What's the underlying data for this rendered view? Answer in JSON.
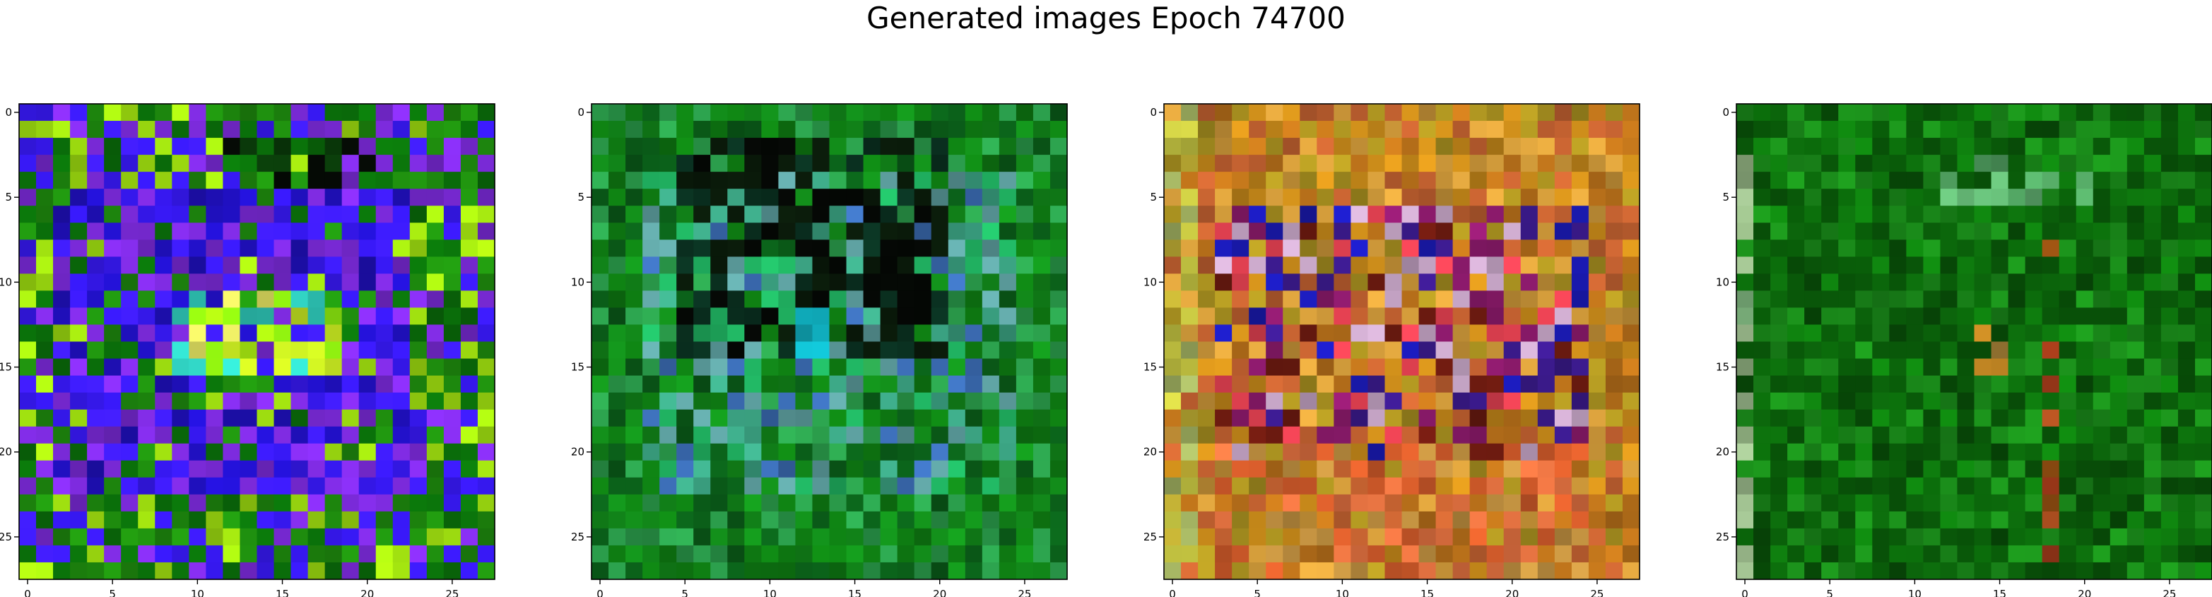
{
  "title": "Generated images Epoch 74700",
  "chart_data": [
    {
      "type": "heatmap",
      "title": "",
      "xlabel": "",
      "ylabel": "",
      "grid_size": [
        28,
        28
      ],
      "xlim": [
        -0.5,
        27.5
      ],
      "ylim": [
        27.5,
        -0.5
      ],
      "xticks": [
        0,
        5,
        10,
        15,
        20,
        25
      ],
      "yticks": [
        0,
        5,
        10,
        15,
        20,
        25
      ],
      "grid": false,
      "dominant_colors": [
        "#1e8a0e",
        "#0a6e0a",
        "#3a1aff",
        "#7a2ad8",
        "#a0e010"
      ],
      "features": [
        {
          "rows": [
            5,
            22
          ],
          "cols": [
            2,
            22
          ],
          "colors": [
            "#3a1aff",
            "#7a2ad8",
            "#2010c0"
          ],
          "kind": "ring"
        },
        {
          "rows": [
            11,
            15
          ],
          "cols": [
            9,
            18
          ],
          "colors": [
            "#c0e020",
            "#30d0c0",
            "#e0e060",
            "#90f010"
          ],
          "kind": "speckle"
        },
        {
          "rows": [
            2,
            4
          ],
          "cols": [
            10,
            20
          ],
          "colors": [
            "#050a05",
            "#0a3a0a"
          ],
          "kind": "speckle"
        }
      ]
    },
    {
      "type": "heatmap",
      "title": "",
      "xlabel": "",
      "ylabel": "",
      "grid_size": [
        28,
        28
      ],
      "xlim": [
        -0.5,
        27.5
      ],
      "ylim": [
        27.5,
        -0.5
      ],
      "xticks": [
        0,
        5,
        10,
        15,
        20,
        25
      ],
      "yticks": [
        0,
        5,
        10,
        15,
        20,
        25
      ],
      "grid": false,
      "dominant_colors": [
        "#0e7a12",
        "#128a1a",
        "#2a9a4a",
        "#0a5a18"
      ],
      "features": [
        {
          "rows": [
            4,
            22
          ],
          "cols": [
            3,
            24
          ],
          "colors": [
            "#3aa080",
            "#20b060",
            "#3a6ab0",
            "#5a9a9a"
          ],
          "kind": "speckle"
        },
        {
          "rows": [
            2,
            14
          ],
          "cols": [
            5,
            20
          ],
          "colors": [
            "#050805",
            "#0a1a0a",
            "#0a3020"
          ],
          "kind": "speckle"
        },
        {
          "rows": [
            12,
            14
          ],
          "cols": [
            12,
            13
          ],
          "colors": [
            "#10b0c0"
          ],
          "kind": "block"
        }
      ]
    },
    {
      "type": "heatmap",
      "title": "",
      "xlabel": "",
      "ylabel": "",
      "grid_size": [
        28,
        28
      ],
      "xlim": [
        -0.5,
        27.5
      ],
      "ylim": [
        27.5,
        -0.5
      ],
      "xticks": [
        0,
        5,
        10,
        15,
        20,
        25
      ],
      "yticks": [
        0,
        5,
        10,
        15,
        20,
        25
      ],
      "grid": false,
      "dominant_colors": [
        "#c88a1a",
        "#b8701a",
        "#d09a3a",
        "#c06030",
        "#a89020"
      ],
      "features": [
        {
          "rows": [
            6,
            20
          ],
          "cols": [
            3,
            24
          ],
          "colors": [
            "#3a1a8a",
            "#8a1a6a",
            "#e04050",
            "#6a1a10",
            "#1a1ab0",
            "#c0a0c0"
          ],
          "kind": "speckle"
        },
        {
          "rows": [
            0,
            27
          ],
          "cols": [
            0,
            1
          ],
          "colors": [
            "#a0b060",
            "#c0c040",
            "#b0a030"
          ],
          "kind": "speckle"
        },
        {
          "rows": [
            20,
            27
          ],
          "cols": [
            3,
            24
          ],
          "colors": [
            "#e07040",
            "#d05a2a",
            "#c09040"
          ],
          "kind": "speckle"
        }
      ]
    },
    {
      "type": "heatmap",
      "title": "",
      "xlabel": "",
      "ylabel": "",
      "grid_size": [
        28,
        28
      ],
      "xlim": [
        -0.5,
        27.5
      ],
      "ylim": [
        27.5,
        -0.5
      ],
      "xticks": [
        0,
        5,
        10,
        15,
        20,
        25
      ],
      "yticks": [
        0,
        5,
        10,
        15,
        20,
        25
      ],
      "grid": false,
      "dominant_colors": [
        "#0e7a0e",
        "#0a600a",
        "#1a8a1a",
        "#085008"
      ],
      "features": [
        {
          "rows": [
            0,
            27
          ],
          "cols": [
            0,
            0
          ],
          "colors": [
            "#90b080",
            "#a0c090",
            "#70a070"
          ],
          "kind": "speckle"
        },
        {
          "rows": [
            8,
            26
          ],
          "cols": [
            18,
            18
          ],
          "colors": [
            "#a03a1a",
            "#8a4a10",
            "#b05020"
          ],
          "kind": "speckle"
        },
        {
          "rows": [
            13,
            16
          ],
          "cols": [
            14,
            15
          ],
          "colors": [
            "#b07a20",
            "#907030"
          ],
          "kind": "speckle"
        },
        {
          "rows": [
            3,
            5
          ],
          "cols": [
            12,
            20
          ],
          "colors": [
            "#50a060",
            "#60b070"
          ],
          "kind": "speckle"
        }
      ]
    }
  ]
}
